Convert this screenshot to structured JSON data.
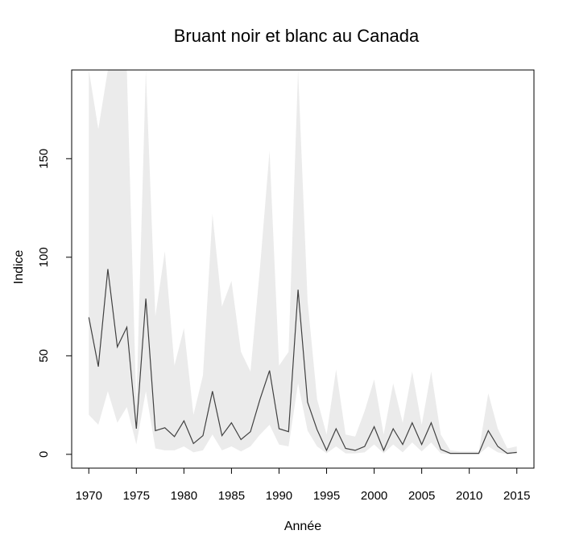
{
  "chart_data": {
    "type": "line",
    "title": "Bruant noir et blanc au Canada",
    "xlabel": "Année",
    "ylabel": "Indice",
    "xlim": [
      1968.2,
      2016.8
    ],
    "ylim": [
      -7,
      195
    ],
    "x_ticks": [
      1970,
      1975,
      1980,
      1985,
      1990,
      1995,
      2000,
      2005,
      2010,
      2015
    ],
    "y_ticks": [
      0,
      50,
      100,
      150
    ],
    "grid": false,
    "legend": "none",
    "colors": {
      "line": "#404040",
      "band": "#ebebeb",
      "frame": "#000000"
    },
    "series": [
      {
        "x": [
          1970,
          1971,
          1972,
          1973,
          1974,
          1975,
          1976,
          1977,
          1978,
          1979,
          1980,
          1981,
          1982,
          1983,
          1984,
          1985,
          1986,
          1987,
          1988,
          1989,
          1990,
          1991,
          1992,
          1993,
          1994,
          1995,
          1996,
          1997,
          1998,
          1999,
          2000,
          2001,
          2002,
          2003,
          2004,
          2005,
          2006,
          2007,
          2008,
          2009,
          2010,
          2011,
          2012,
          2013,
          2014,
          2015
        ],
        "values": [
          69.5,
          44.5,
          94,
          54.5,
          64.5,
          13,
          79,
          12,
          13.5,
          9,
          17,
          5.5,
          9.5,
          32,
          9.5,
          16,
          7.5,
          11.5,
          28,
          42.5,
          13,
          11.5,
          83.5,
          26.5,
          12.5,
          2,
          13,
          3,
          2,
          4,
          14,
          2,
          13,
          5,
          16,
          5,
          16,
          2.5,
          0.5,
          0.5,
          0.5,
          0.5,
          12,
          4,
          0.5,
          1
        ],
        "upper": [
          195,
          165,
          195,
          195,
          195,
          25,
          195,
          70,
          103,
          45,
          64,
          20,
          40,
          122,
          75,
          88,
          52,
          42,
          95,
          154,
          45,
          52,
          195,
          78,
          28,
          10,
          43,
          10,
          9,
          22,
          38,
          10,
          36,
          16,
          42,
          15,
          42,
          10,
          2,
          1.5,
          1.5,
          1.5,
          31,
          13,
          3,
          4
        ],
        "lower": [
          20,
          15,
          32,
          16,
          24,
          5,
          32,
          3,
          2,
          2,
          4,
          1,
          2,
          10,
          2,
          4,
          1.5,
          4,
          10,
          15,
          5,
          4,
          36,
          12,
          4,
          0.5,
          4,
          0.5,
          0.5,
          1,
          5,
          0.5,
          5,
          1,
          6,
          1.5,
          6,
          0.5,
          0,
          0,
          0,
          0,
          4,
          1,
          0,
          0.2
        ]
      }
    ]
  }
}
